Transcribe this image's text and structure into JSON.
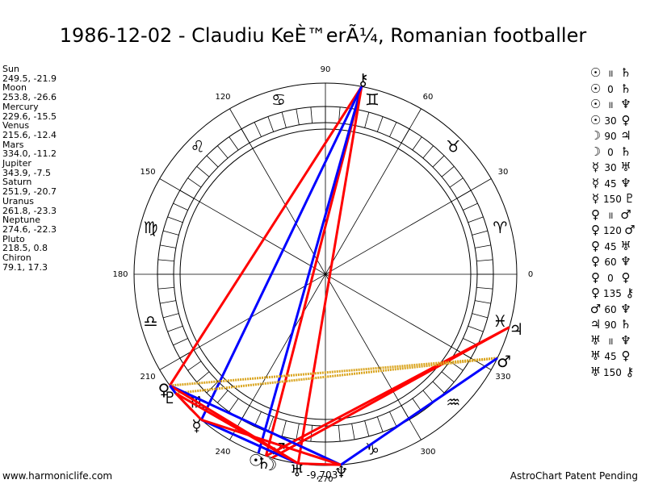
{
  "title": "1986-12-02 - Claudiu KeÈ™erÃ¼, Romanian footballer",
  "positions": [
    {
      "name": "Sun",
      "value": "249.5, -21.9"
    },
    {
      "name": "Moon",
      "value": "253.8, -26.6"
    },
    {
      "name": "Mercury",
      "value": "229.6, -15.5"
    },
    {
      "name": "Venus",
      "value": "215.6, -12.4"
    },
    {
      "name": "Mars",
      "value": "334.0, -11.2"
    },
    {
      "name": "Jupiter",
      "value": "343.9, -7.5"
    },
    {
      "name": "Saturn",
      "value": "251.9, -20.7"
    },
    {
      "name": "Uranus",
      "value": "261.8, -23.3"
    },
    {
      "name": "Neptune",
      "value": "274.6, -22.3"
    },
    {
      "name": "Pluto",
      "value": "218.5, 0.8"
    },
    {
      "name": "Chiron",
      "value": "79.1, 17.3"
    }
  ],
  "aspects": [
    {
      "p1": "☉",
      "aspect": "॥",
      "p2": "♄"
    },
    {
      "p1": "☉",
      "aspect": "0",
      "p2": "♄"
    },
    {
      "p1": "☉",
      "aspect": "॥",
      "p2": "♆"
    },
    {
      "p1": "☉",
      "aspect": "30",
      "p2": "♀"
    },
    {
      "p1": "☽",
      "aspect": "90",
      "p2": "♃"
    },
    {
      "p1": "☽",
      "aspect": "0",
      "p2": "♄"
    },
    {
      "p1": "☿",
      "aspect": "30",
      "p2": "♅"
    },
    {
      "p1": "☿",
      "aspect": "45",
      "p2": "♆"
    },
    {
      "p1": "☿",
      "aspect": "150",
      "p2": "♇"
    },
    {
      "p1": "♀",
      "aspect": "॥",
      "p2": "♂"
    },
    {
      "p1": "♀",
      "aspect": "120",
      "p2": "♂"
    },
    {
      "p1": "♀",
      "aspect": "45",
      "p2": "♅"
    },
    {
      "p1": "♀",
      "aspect": "60",
      "p2": "♆"
    },
    {
      "p1": "♀",
      "aspect": "0",
      "p2": "♀"
    },
    {
      "p1": "♀",
      "aspect": "135",
      "p2": "⚷"
    },
    {
      "p1": "♂",
      "aspect": "60",
      "p2": "♆"
    },
    {
      "p1": "♃",
      "aspect": "90",
      "p2": "♄"
    },
    {
      "p1": "♅",
      "aspect": "॥",
      "p2": "♆"
    },
    {
      "p1": "♅",
      "aspect": "45",
      "p2": "♀"
    },
    {
      "p1": "♅",
      "aspect": "150",
      "p2": "⚷"
    }
  ],
  "wheel": {
    "degree_labels": [
      "0",
      "30",
      "60",
      "90",
      "120",
      "150",
      "180",
      "210",
      "240",
      "270",
      "300",
      "330"
    ],
    "signs": [
      "♈",
      "♉",
      "♊",
      "♋",
      "♌",
      "♍",
      "♎",
      "♏",
      "♐",
      "♑",
      "♒",
      "♓"
    ],
    "planets": [
      {
        "glyph": "☉",
        "lon": 249.5
      },
      {
        "glyph": "☽",
        "lon": 253.8
      },
      {
        "glyph": "☿",
        "lon": 229.6
      },
      {
        "glyph": "♀",
        "lon": 215.6
      },
      {
        "glyph": "♂",
        "lon": 334.0
      },
      {
        "glyph": "♃",
        "lon": 343.9
      },
      {
        "glyph": "♄",
        "lon": 251.9
      },
      {
        "glyph": "♅",
        "lon": 261.8
      },
      {
        "glyph": "♆",
        "lon": 274.6
      },
      {
        "glyph": "♇",
        "lon": 218.5
      },
      {
        "glyph": "⚷",
        "lon": 79.1
      }
    ],
    "aspect_lines": [
      {
        "a": "Chiron",
        "b": "Saturn",
        "color": "#ff0000"
      },
      {
        "a": "Chiron",
        "b": "Sun",
        "color": "#0000ff"
      },
      {
        "a": "Chiron",
        "b": "Venus",
        "color": "#ff0000"
      },
      {
        "a": "Chiron",
        "b": "Uranus",
        "color": "#ff0000"
      },
      {
        "a": "Chiron",
        "b": "Mercury",
        "color": "#0000ff"
      },
      {
        "a": "Jupiter",
        "b": "Moon",
        "color": "#ff0000"
      },
      {
        "a": "Jupiter",
        "b": "Saturn",
        "color": "#ff0000"
      },
      {
        "a": "Mars",
        "b": "Venus",
        "color": "#daa520"
      },
      {
        "a": "Mars",
        "b": "Pluto",
        "color": "#daa520"
      },
      {
        "a": "Mars",
        "b": "Neptune",
        "color": "#0000ff"
      },
      {
        "a": "Venus",
        "b": "Neptune",
        "color": "#0000ff"
      },
      {
        "a": "Venus",
        "b": "Uranus",
        "color": "#ff0000"
      },
      {
        "a": "Venus",
        "b": "Pluto",
        "color": "#0000ff"
      },
      {
        "a": "Mercury",
        "b": "Pluto",
        "color": "#ff0000"
      },
      {
        "a": "Mercury",
        "b": "Uranus",
        "color": "#0000ff"
      },
      {
        "a": "Mercury",
        "b": "Neptune",
        "color": "#ff0000"
      },
      {
        "a": "Pluto",
        "b": "Uranus",
        "color": "#ff0000"
      },
      {
        "a": "Uranus",
        "b": "Neptune",
        "color": "#ff0000"
      }
    ],
    "readout": "-9,703"
  },
  "footer": {
    "left": "www.harmoniclife.com",
    "right": "AstroChart Patent Pending"
  }
}
